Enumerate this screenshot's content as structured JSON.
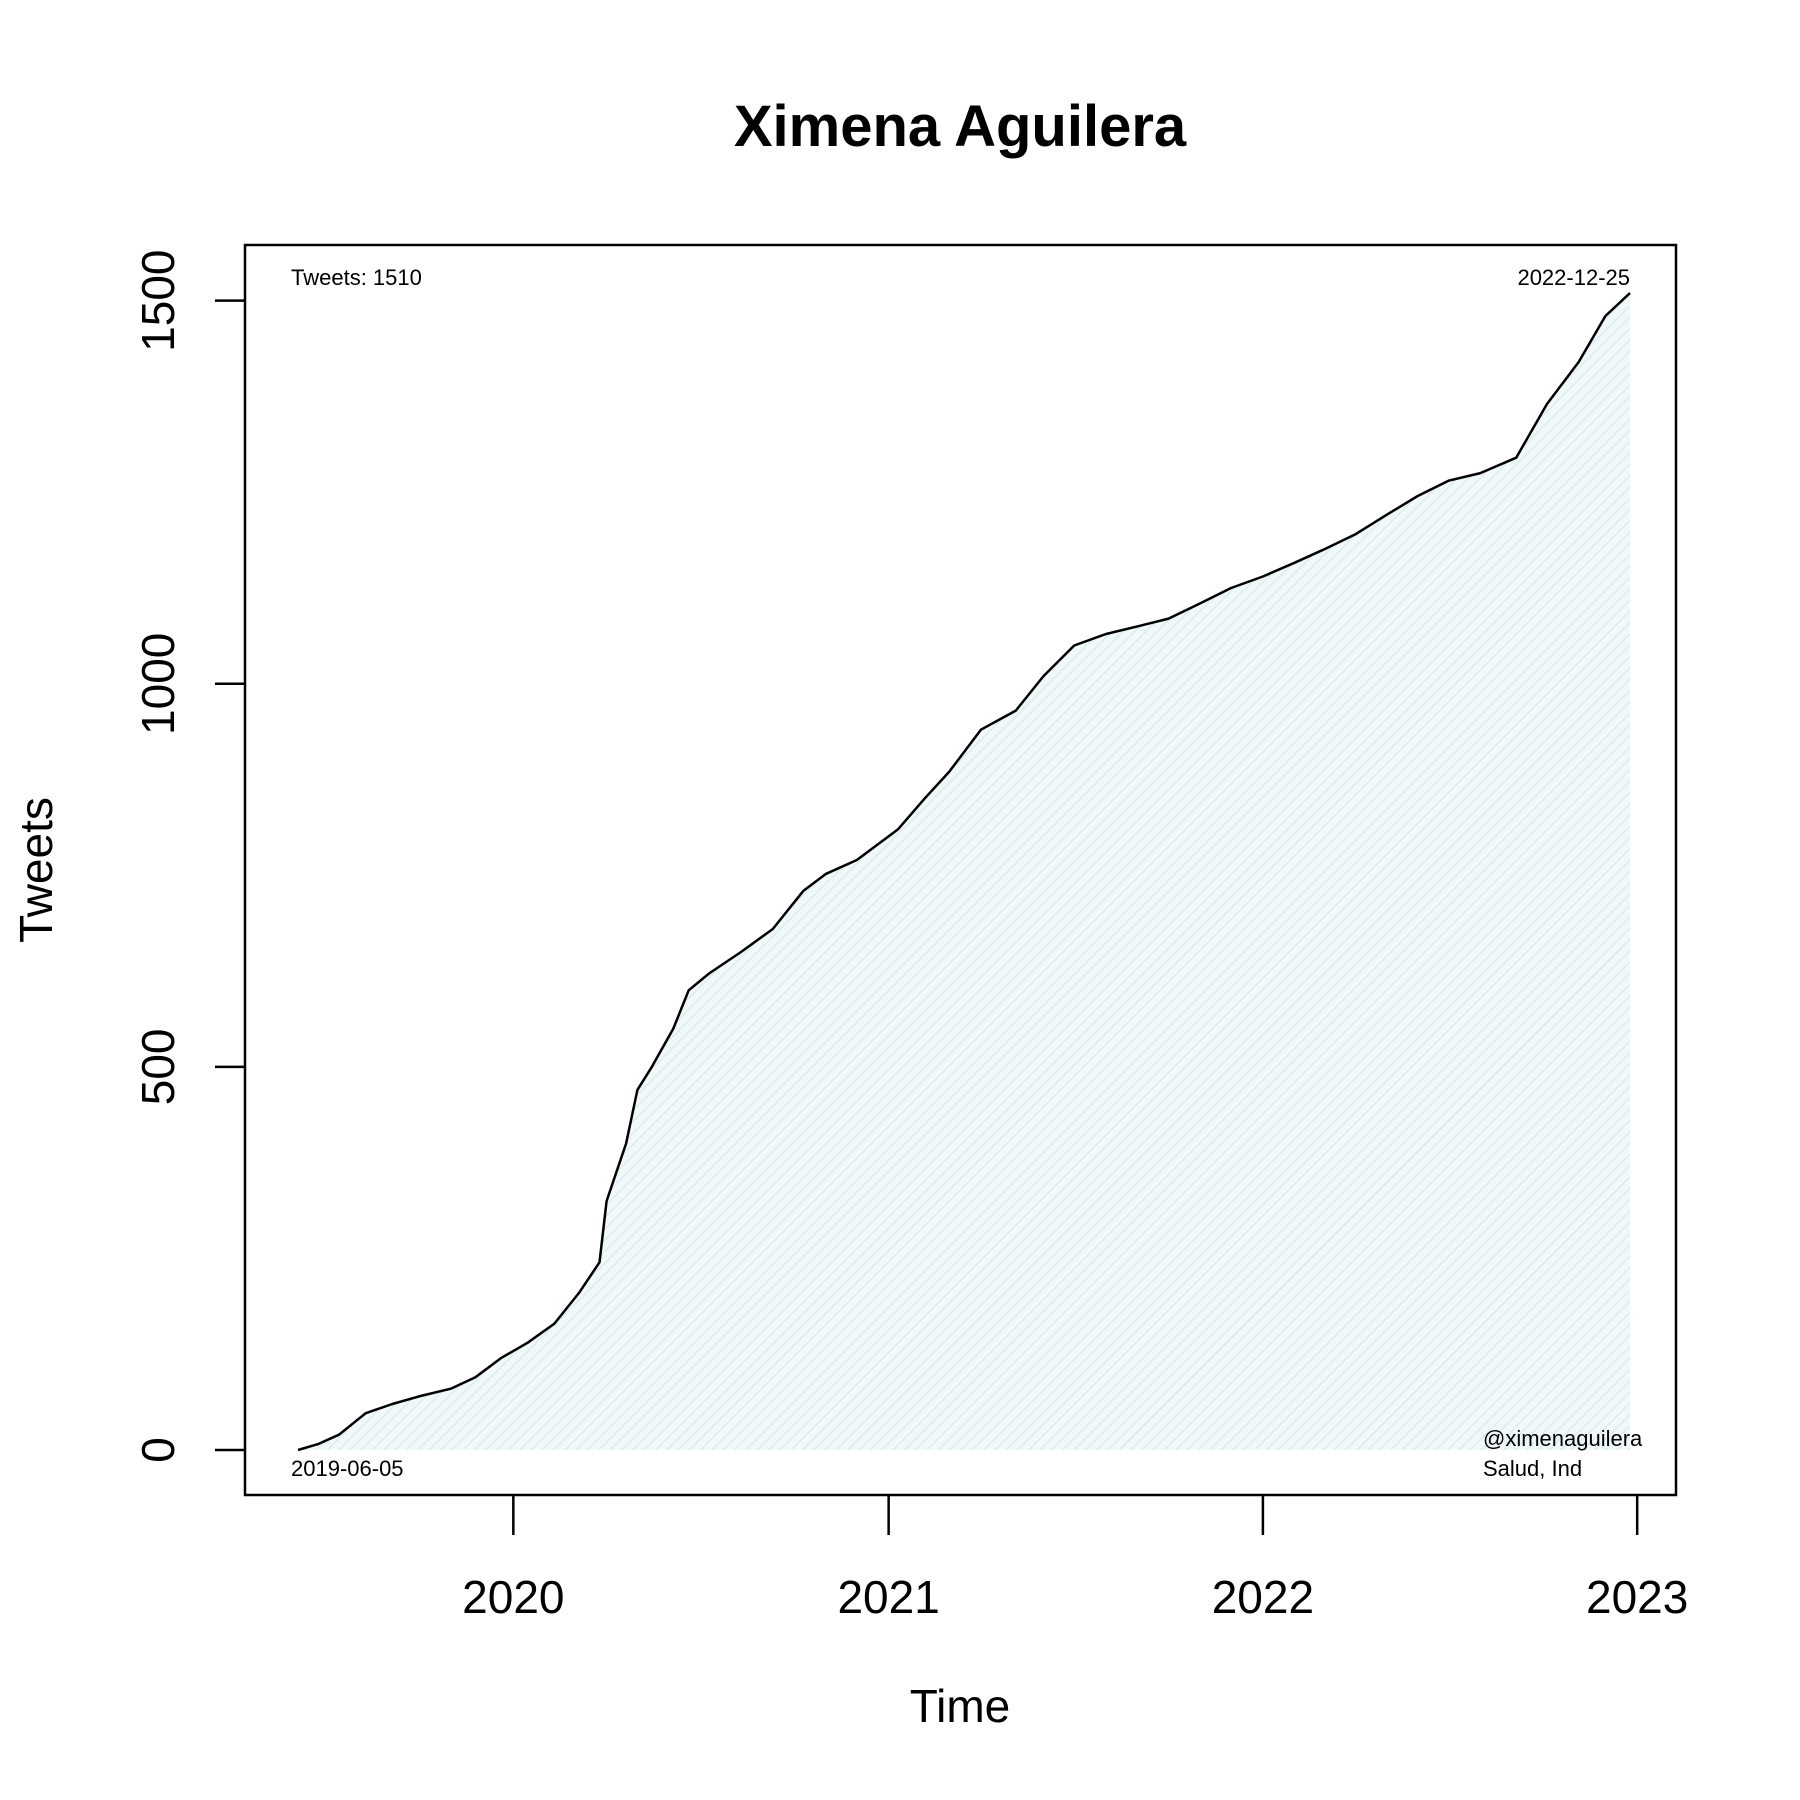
{
  "chart_data": {
    "type": "area",
    "title": "Ximena Aguilera",
    "xlabel": "Time",
    "ylabel": "Tweets",
    "xlim": [
      "2019-06-05",
      "2022-12-25"
    ],
    "ylim": [
      0,
      1510
    ],
    "x_ticks": [
      {
        "date": "2020-01-01",
        "label": "2020"
      },
      {
        "date": "2021-01-01",
        "label": "2021"
      },
      {
        "date": "2022-01-01",
        "label": "2022"
      },
      {
        "date": "2023-01-01",
        "label": "2023"
      }
    ],
    "y_ticks": [
      {
        "value": 0,
        "label": "0"
      },
      {
        "value": 500,
        "label": "500"
      },
      {
        "value": 1000,
        "label": "1000"
      },
      {
        "value": 1500,
        "label": "1500"
      }
    ],
    "annotations": {
      "top_left": "Tweets: 1510",
      "top_right": "2022-12-25",
      "bottom_left": "2019-06-05",
      "bottom_right_1": "@ximenaguilera",
      "bottom_right_2": "Salud, Ind"
    },
    "fill_color": "#e6f3f5",
    "line_color": "#000000",
    "series": [
      {
        "points": [
          [
            "2019-06-05",
            0
          ],
          [
            "2019-06-25",
            8
          ],
          [
            "2019-07-15",
            20
          ],
          [
            "2019-08-10",
            48
          ],
          [
            "2019-09-05",
            60
          ],
          [
            "2019-10-01",
            70
          ],
          [
            "2019-11-01",
            80
          ],
          [
            "2019-11-25",
            95
          ],
          [
            "2019-12-20",
            120
          ],
          [
            "2020-01-15",
            140
          ],
          [
            "2020-02-10",
            165
          ],
          [
            "2020-03-05",
            205
          ],
          [
            "2020-03-25",
            245
          ],
          [
            "2020-04-01",
            325
          ],
          [
            "2020-04-20",
            400
          ],
          [
            "2020-05-01",
            470
          ],
          [
            "2020-05-15",
            500
          ],
          [
            "2020-06-05",
            550
          ],
          [
            "2020-06-20",
            600
          ],
          [
            "2020-07-10",
            622
          ],
          [
            "2020-08-10",
            650
          ],
          [
            "2020-09-10",
            680
          ],
          [
            "2020-10-10",
            730
          ],
          [
            "2020-11-01",
            752
          ],
          [
            "2020-12-01",
            770
          ],
          [
            "2021-01-10",
            810
          ],
          [
            "2021-02-05",
            850
          ],
          [
            "2021-03-01",
            885
          ],
          [
            "2021-04-01",
            940
          ],
          [
            "2021-05-05",
            965
          ],
          [
            "2021-06-01",
            1010
          ],
          [
            "2021-07-01",
            1050
          ],
          [
            "2021-08-01",
            1065
          ],
          [
            "2021-09-01",
            1075
          ],
          [
            "2021-10-01",
            1085
          ],
          [
            "2021-11-01",
            1105
          ],
          [
            "2021-12-01",
            1125
          ],
          [
            "2022-01-01",
            1140
          ],
          [
            "2022-02-01",
            1158
          ],
          [
            "2022-03-01",
            1175
          ],
          [
            "2022-04-01",
            1195
          ],
          [
            "2022-05-01",
            1220
          ],
          [
            "2022-06-01",
            1245
          ],
          [
            "2022-07-01",
            1265
          ],
          [
            "2022-08-01",
            1275
          ],
          [
            "2022-09-05",
            1295
          ],
          [
            "2022-10-05",
            1365
          ],
          [
            "2022-11-05",
            1420
          ],
          [
            "2022-12-01",
            1480
          ],
          [
            "2022-12-25",
            1510
          ]
        ]
      }
    ]
  }
}
